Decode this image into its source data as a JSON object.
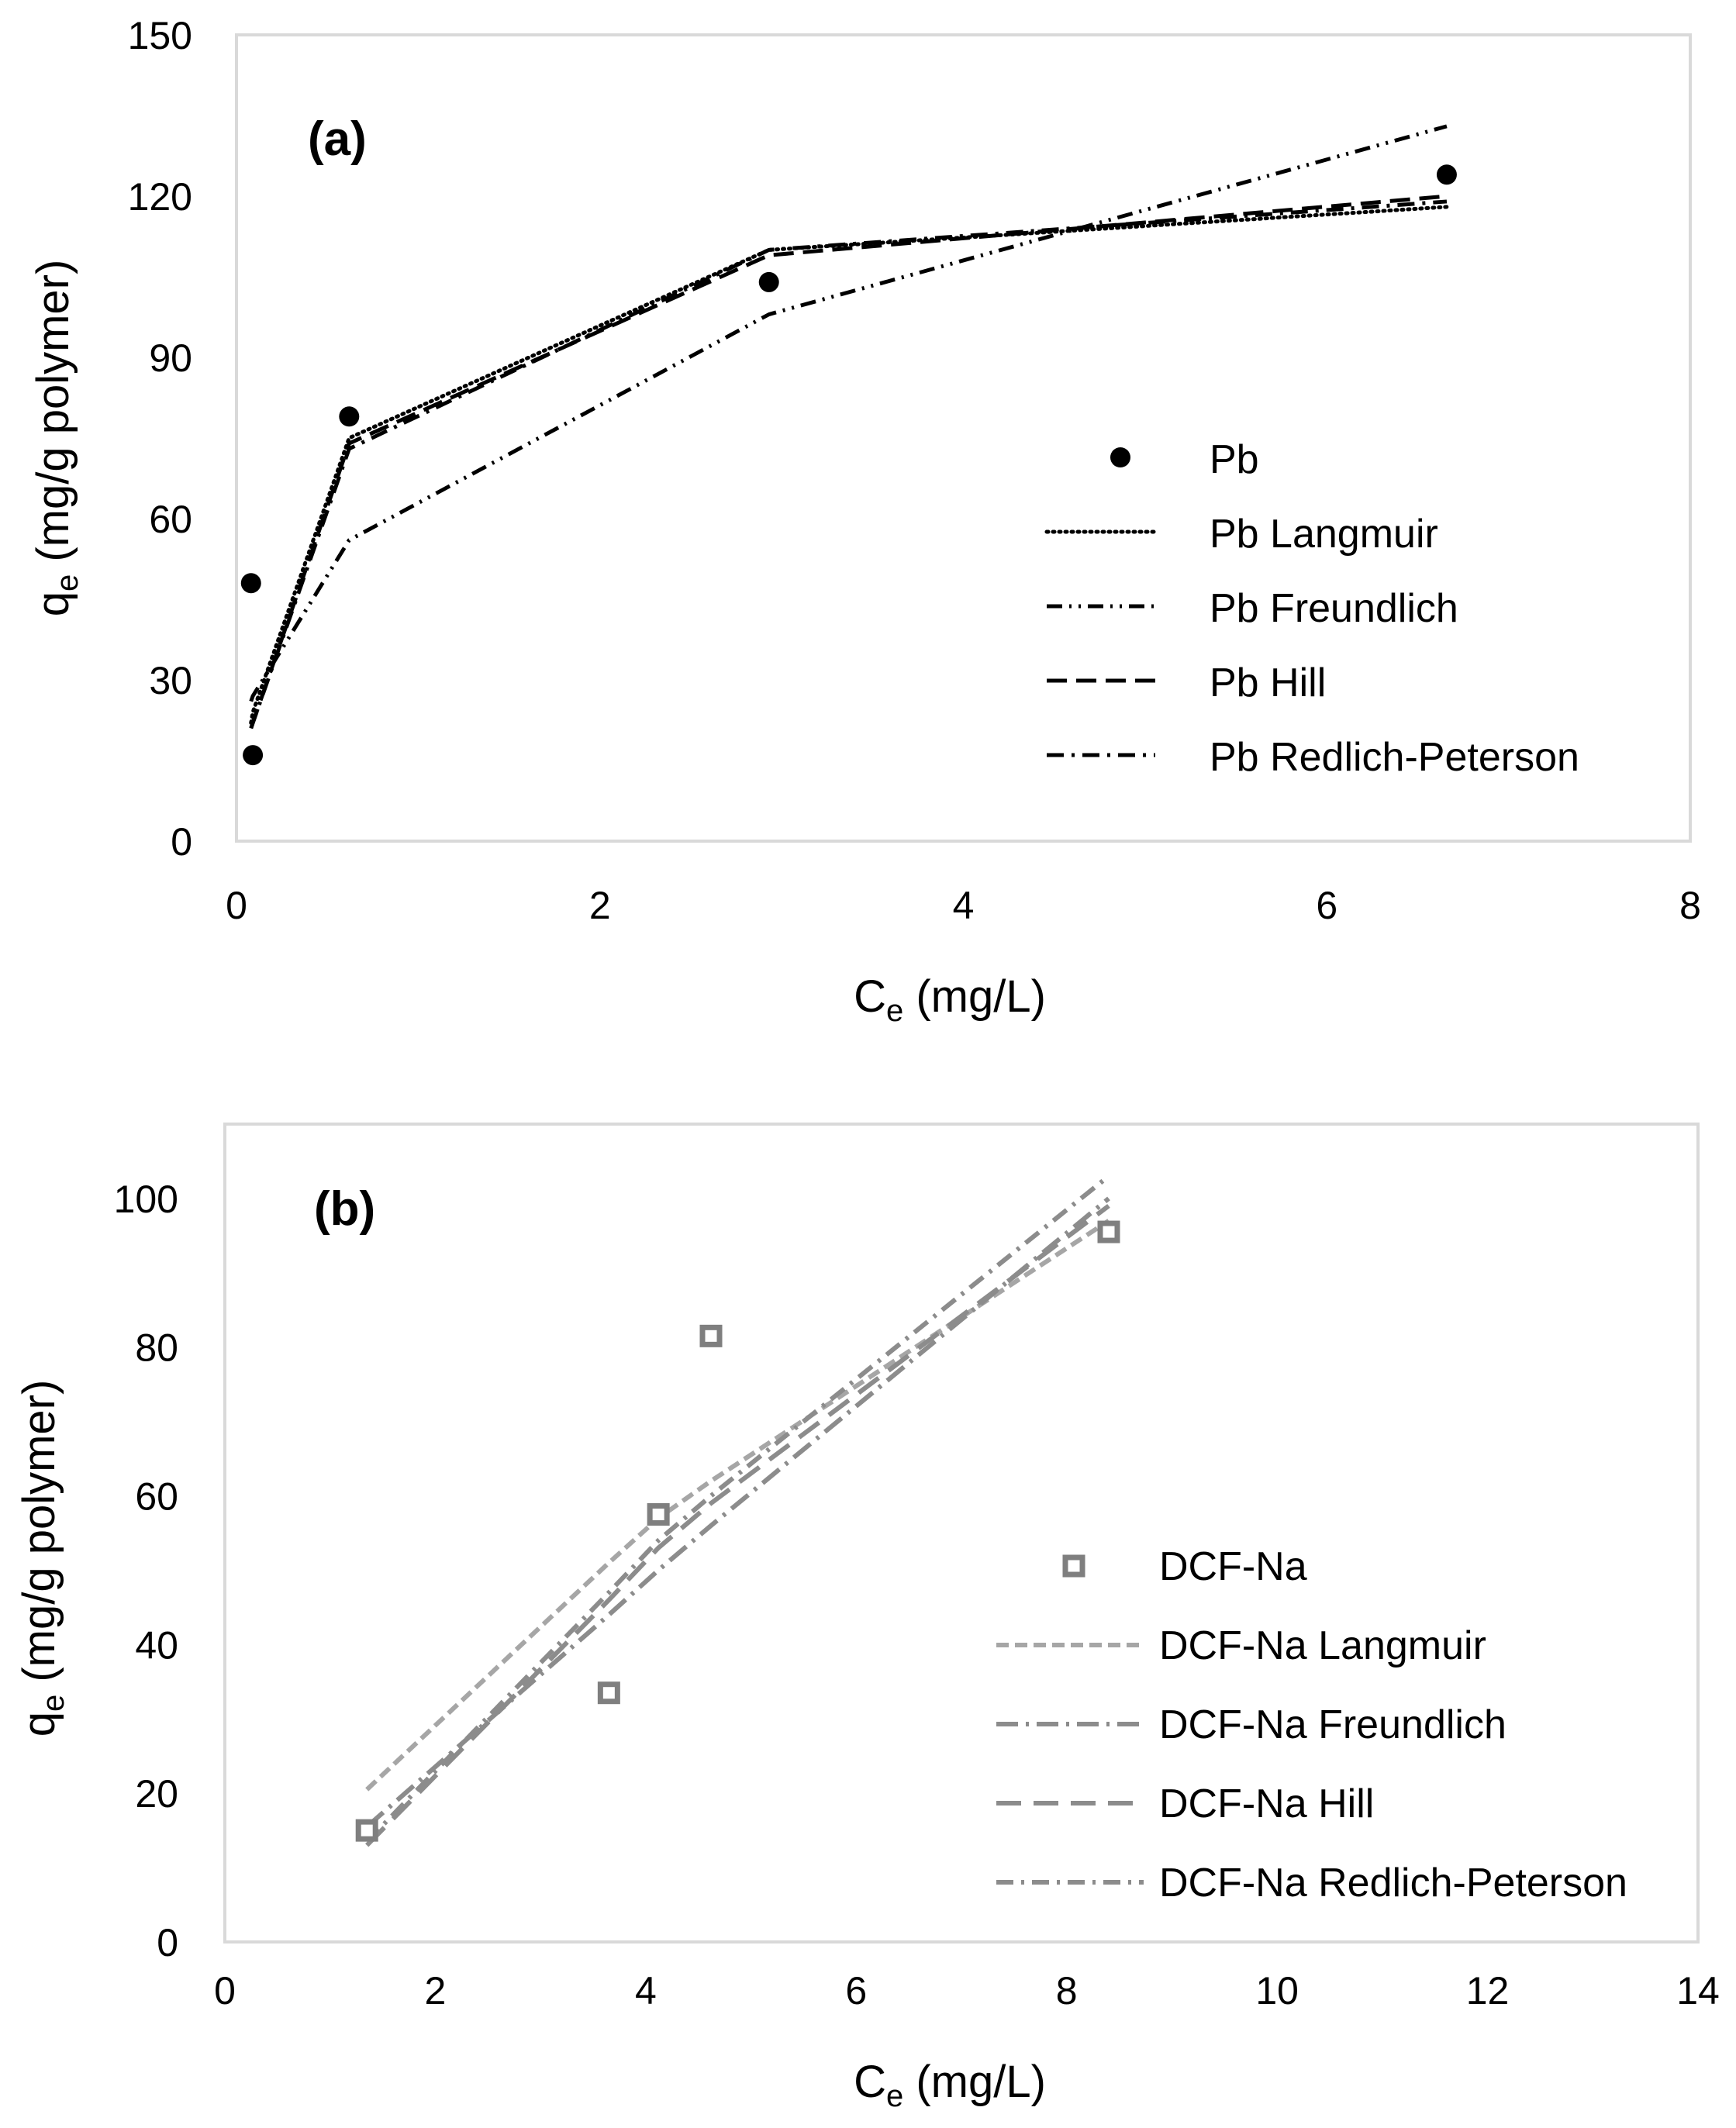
{
  "chart_data": [
    {
      "type": "line",
      "panel_label": "(a)",
      "xlabel_main": "C",
      "xlabel_sub": "e",
      "xlabel_rest": " (mg/L)",
      "ylabel_main": "q",
      "ylabel_sub": "e",
      "ylabel_rest": " (mg/g polymer)",
      "xlim": [
        0,
        8
      ],
      "ylim": [
        0,
        150
      ],
      "xticks": [
        0,
        2,
        4,
        6,
        8
      ],
      "yticks": [
        0,
        30,
        60,
        90,
        120,
        150
      ],
      "grid": false,
      "legend_position": "center-right",
      "points": {
        "name": "Pb",
        "color": "#000000",
        "x": [
          0.08,
          0.09,
          0.62,
          2.93,
          6.66
        ],
        "y": [
          48,
          16,
          79,
          104,
          124
        ]
      },
      "series": [
        {
          "name": "Pb Langmuir",
          "style": "dotted",
          "color": "#000000",
          "x": [
            0.08,
            0.09,
            0.62,
            2.93,
            6.66
          ],
          "y": [
            22,
            24,
            75,
            110,
            118
          ]
        },
        {
          "name": "Pb Freundlich",
          "style": "dash-dot-dot",
          "color": "#000000",
          "x": [
            0.08,
            0.09,
            0.62,
            2.93,
            6.66
          ],
          "y": [
            26,
            27,
            56,
            98,
            133
          ]
        },
        {
          "name": "Pb Hill",
          "style": "dashed",
          "color": "#000000",
          "x": [
            0.08,
            0.09,
            0.62,
            2.93,
            6.66
          ],
          "y": [
            21,
            22,
            74,
            109,
            120
          ]
        },
        {
          "name": "Pb Redlich-Peterson",
          "style": "dash-dot",
          "color": "#000000",
          "x": [
            0.08,
            0.09,
            0.62,
            2.93,
            6.66
          ],
          "y": [
            21,
            22,
            73,
            110,
            119
          ]
        }
      ]
    },
    {
      "type": "line",
      "panel_label": "(b)",
      "xlabel_main": "C",
      "xlabel_sub": "e",
      "xlabel_rest": " (mg/L)",
      "ylabel_main": "q",
      "ylabel_sub": "e",
      "ylabel_rest": " (mg/g polymer)",
      "xlim": [
        0,
        14
      ],
      "ylim": [
        0,
        110
      ],
      "xticks": [
        0,
        2,
        4,
        6,
        8,
        10,
        12,
        14
      ],
      "yticks": [
        0,
        20,
        40,
        60,
        80,
        100
      ],
      "grid": false,
      "legend_position": "bottom-right",
      "points": {
        "name": "DCF-Na",
        "color": "#7f7f7f",
        "x": [
          1.35,
          3.65,
          4.12,
          4.62,
          8.4
        ],
        "y": [
          15,
          33.5,
          57.5,
          81.5,
          95.5
        ]
      },
      "series": [
        {
          "name": "DCF-Na Langmuir",
          "style": "short-dash",
          "color": "#a6a6a6",
          "x": [
            1.35,
            3.65,
            4.12,
            4.62,
            8.4
          ],
          "y": [
            20.5,
            51,
            57,
            62,
            97
          ]
        },
        {
          "name": "DCF-Na Freundlich",
          "style": "long-dash-dot",
          "color": "#8c8c8c",
          "x": [
            1.35,
            3.65,
            4.12,
            4.62,
            8.4
          ],
          "y": [
            15.5,
            44,
            50,
            56,
            100
          ]
        },
        {
          "name": "DCF-Na Hill",
          "style": "long-dash",
          "color": "#8c8c8c",
          "x": [
            1.35,
            3.65,
            4.12,
            4.62,
            8.4
          ],
          "y": [
            13,
            46,
            53,
            59,
            99
          ]
        },
        {
          "name": "DCF-Na Redlich-Peterson",
          "style": "dash-dot",
          "color": "#8c8c8c",
          "x": [
            1.35,
            3.65,
            4.12,
            4.62,
            8.4
          ],
          "y": [
            13.5,
            47,
            54,
            60,
            103
          ]
        }
      ]
    }
  ]
}
